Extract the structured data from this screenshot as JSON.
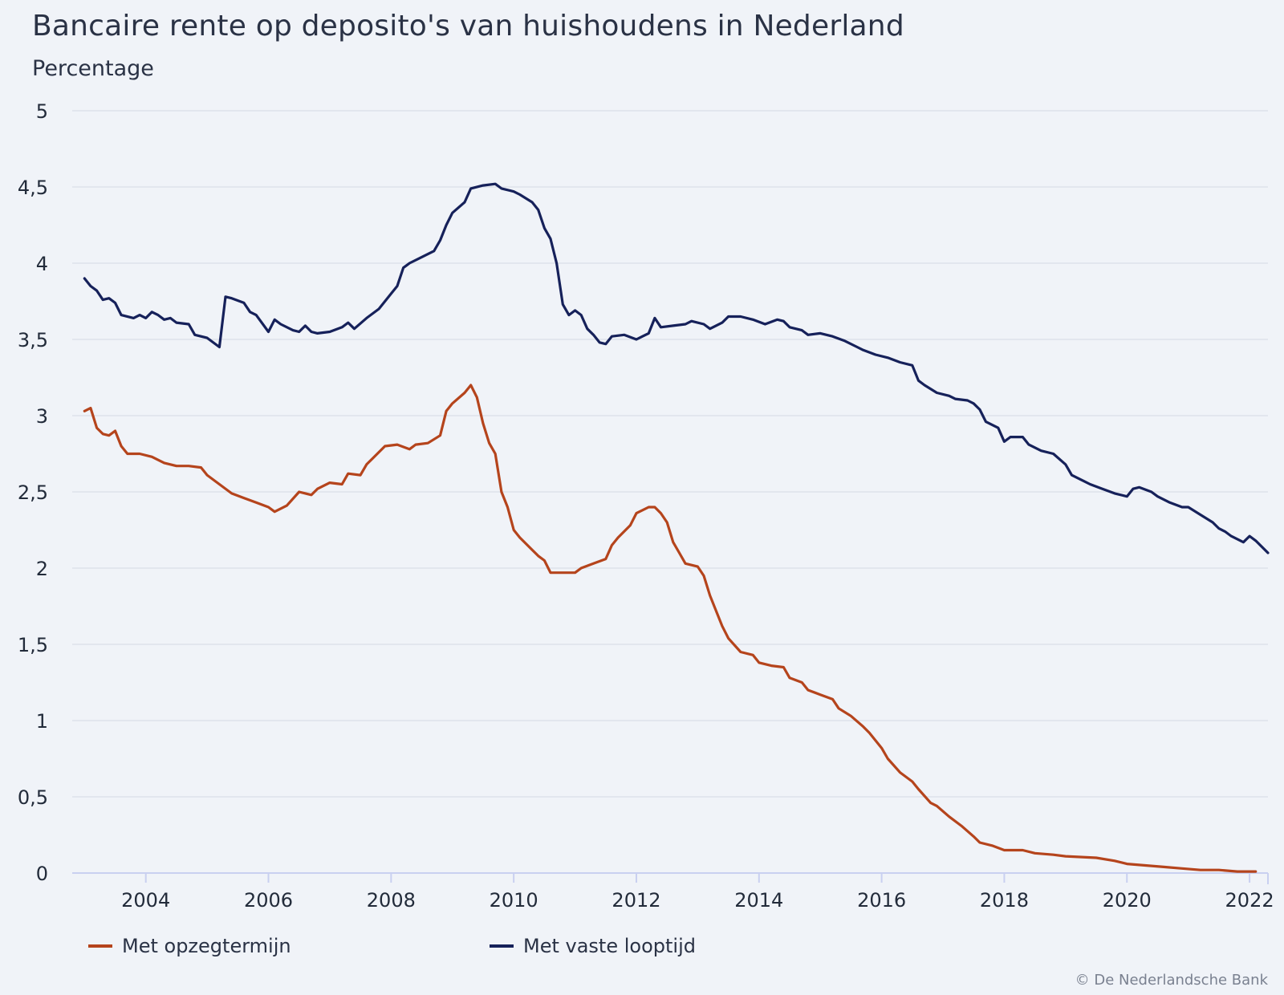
{
  "title": "Bancaire rente op deposito's van huishoudens in Nederland",
  "credit": "© De Nederlandsche Bank",
  "chart_data": {
    "type": "line",
    "title": "Bancaire rente op deposito's van huishoudens in Nederland",
    "ylabel": "Percentage",
    "xlabel": "",
    "ylim": [
      0,
      5
    ],
    "xlim": [
      2002.8,
      2022.3
    ],
    "y_ticks": [
      0,
      0.5,
      1,
      1.5,
      2,
      2.5,
      3,
      3.5,
      4,
      4.5,
      5
    ],
    "y_tick_labels": [
      "0",
      "0,5",
      "1",
      "1,5",
      "2",
      "2,5",
      "3",
      "3,5",
      "4",
      "4,5",
      "5"
    ],
    "x_ticks": [
      2004,
      2006,
      2008,
      2010,
      2012,
      2014,
      2016,
      2018,
      2020,
      2022
    ],
    "x_tick_labels": [
      "2004",
      "2006",
      "2008",
      "2010",
      "2012",
      "2014",
      "2016",
      "2018",
      "2020",
      "2022"
    ],
    "grid": "horizontal",
    "legend_position": "bottom-left",
    "series": [
      {
        "name": "Met opzegtermijn",
        "color": "#b5441c",
        "points": [
          [
            2003.0,
            3.03
          ],
          [
            2003.1,
            3.05
          ],
          [
            2003.2,
            2.92
          ],
          [
            2003.3,
            2.88
          ],
          [
            2003.4,
            2.87
          ],
          [
            2003.5,
            2.9
          ],
          [
            2003.6,
            2.8
          ],
          [
            2003.7,
            2.75
          ],
          [
            2003.9,
            2.75
          ],
          [
            2004.1,
            2.73
          ],
          [
            2004.3,
            2.69
          ],
          [
            2004.5,
            2.67
          ],
          [
            2004.7,
            2.67
          ],
          [
            2004.9,
            2.66
          ],
          [
            2005.0,
            2.61
          ],
          [
            2005.2,
            2.55
          ],
          [
            2005.4,
            2.49
          ],
          [
            2005.6,
            2.46
          ],
          [
            2005.8,
            2.43
          ],
          [
            2006.0,
            2.4
          ],
          [
            2006.1,
            2.37
          ],
          [
            2006.3,
            2.41
          ],
          [
            2006.5,
            2.5
          ],
          [
            2006.7,
            2.48
          ],
          [
            2006.8,
            2.52
          ],
          [
            2007.0,
            2.56
          ],
          [
            2007.2,
            2.55
          ],
          [
            2007.3,
            2.62
          ],
          [
            2007.5,
            2.61
          ],
          [
            2007.6,
            2.68
          ],
          [
            2007.7,
            2.72
          ],
          [
            2007.9,
            2.8
          ],
          [
            2008.1,
            2.81
          ],
          [
            2008.3,
            2.78
          ],
          [
            2008.4,
            2.81
          ],
          [
            2008.6,
            2.82
          ],
          [
            2008.8,
            2.87
          ],
          [
            2008.9,
            3.03
          ],
          [
            2009.0,
            3.08
          ],
          [
            2009.2,
            3.15
          ],
          [
            2009.3,
            3.2
          ],
          [
            2009.4,
            3.12
          ],
          [
            2009.5,
            2.95
          ],
          [
            2009.6,
            2.82
          ],
          [
            2009.7,
            2.75
          ],
          [
            2009.8,
            2.5
          ],
          [
            2009.9,
            2.4
          ],
          [
            2010.0,
            2.25
          ],
          [
            2010.1,
            2.2
          ],
          [
            2010.3,
            2.12
          ],
          [
            2010.4,
            2.08
          ],
          [
            2010.5,
            2.05
          ],
          [
            2010.6,
            1.97
          ],
          [
            2010.8,
            1.97
          ],
          [
            2011.0,
            1.97
          ],
          [
            2011.1,
            2.0
          ],
          [
            2011.3,
            2.03
          ],
          [
            2011.5,
            2.06
          ],
          [
            2011.6,
            2.15
          ],
          [
            2011.7,
            2.2
          ],
          [
            2011.9,
            2.28
          ],
          [
            2012.0,
            2.36
          ],
          [
            2012.2,
            2.4
          ],
          [
            2012.3,
            2.4
          ],
          [
            2012.4,
            2.36
          ],
          [
            2012.5,
            2.3
          ],
          [
            2012.6,
            2.17
          ],
          [
            2012.7,
            2.1
          ],
          [
            2012.8,
            2.03
          ],
          [
            2013.0,
            2.01
          ],
          [
            2013.1,
            1.95
          ],
          [
            2013.2,
            1.82
          ],
          [
            2013.3,
            1.72
          ],
          [
            2013.4,
            1.62
          ],
          [
            2013.5,
            1.54
          ],
          [
            2013.7,
            1.45
          ],
          [
            2013.9,
            1.43
          ],
          [
            2014.0,
            1.38
          ],
          [
            2014.2,
            1.36
          ],
          [
            2014.4,
            1.35
          ],
          [
            2014.5,
            1.28
          ],
          [
            2014.7,
            1.25
          ],
          [
            2014.8,
            1.2
          ],
          [
            2015.0,
            1.17
          ],
          [
            2015.2,
            1.14
          ],
          [
            2015.3,
            1.08
          ],
          [
            2015.5,
            1.03
          ],
          [
            2015.7,
            0.96
          ],
          [
            2015.8,
            0.92
          ],
          [
            2016.0,
            0.82
          ],
          [
            2016.1,
            0.75
          ],
          [
            2016.3,
            0.66
          ],
          [
            2016.5,
            0.6
          ],
          [
            2016.6,
            0.55
          ],
          [
            2016.8,
            0.46
          ],
          [
            2016.9,
            0.44
          ],
          [
            2017.1,
            0.37
          ],
          [
            2017.3,
            0.31
          ],
          [
            2017.5,
            0.24
          ],
          [
            2017.6,
            0.2
          ],
          [
            2017.8,
            0.18
          ],
          [
            2018.0,
            0.15
          ],
          [
            2018.3,
            0.15
          ],
          [
            2018.5,
            0.13
          ],
          [
            2018.8,
            0.12
          ],
          [
            2019.0,
            0.11
          ],
          [
            2019.5,
            0.1
          ],
          [
            2019.8,
            0.08
          ],
          [
            2020.0,
            0.06
          ],
          [
            2020.3,
            0.05
          ],
          [
            2020.6,
            0.04
          ],
          [
            2020.9,
            0.03
          ],
          [
            2021.2,
            0.02
          ],
          [
            2021.5,
            0.02
          ],
          [
            2021.8,
            0.01
          ],
          [
            2022.1,
            0.01
          ]
        ]
      },
      {
        "name": "Met vaste looptijd",
        "color": "#16215a",
        "points": [
          [
            2003.0,
            3.9
          ],
          [
            2003.1,
            3.85
          ],
          [
            2003.2,
            3.82
          ],
          [
            2003.3,
            3.76
          ],
          [
            2003.4,
            3.77
          ],
          [
            2003.5,
            3.74
          ],
          [
            2003.6,
            3.66
          ],
          [
            2003.8,
            3.64
          ],
          [
            2003.9,
            3.66
          ],
          [
            2004.0,
            3.64
          ],
          [
            2004.1,
            3.68
          ],
          [
            2004.2,
            3.66
          ],
          [
            2004.3,
            3.63
          ],
          [
            2004.4,
            3.64
          ],
          [
            2004.5,
            3.61
          ],
          [
            2004.7,
            3.6
          ],
          [
            2004.8,
            3.53
          ],
          [
            2005.0,
            3.51
          ],
          [
            2005.2,
            3.45
          ],
          [
            2005.3,
            3.78
          ],
          [
            2005.4,
            3.77
          ],
          [
            2005.6,
            3.74
          ],
          [
            2005.7,
            3.68
          ],
          [
            2005.8,
            3.66
          ],
          [
            2006.0,
            3.55
          ],
          [
            2006.1,
            3.63
          ],
          [
            2006.2,
            3.6
          ],
          [
            2006.4,
            3.56
          ],
          [
            2006.5,
            3.55
          ],
          [
            2006.6,
            3.59
          ],
          [
            2006.7,
            3.55
          ],
          [
            2006.8,
            3.54
          ],
          [
            2007.0,
            3.55
          ],
          [
            2007.2,
            3.58
          ],
          [
            2007.3,
            3.61
          ],
          [
            2007.4,
            3.57
          ],
          [
            2007.6,
            3.64
          ],
          [
            2007.8,
            3.7
          ],
          [
            2008.0,
            3.8
          ],
          [
            2008.1,
            3.85
          ],
          [
            2008.2,
            3.97
          ],
          [
            2008.3,
            4.0
          ],
          [
            2008.5,
            4.04
          ],
          [
            2008.7,
            4.08
          ],
          [
            2008.8,
            4.15
          ],
          [
            2008.9,
            4.25
          ],
          [
            2009.0,
            4.33
          ],
          [
            2009.2,
            4.4
          ],
          [
            2009.3,
            4.49
          ],
          [
            2009.5,
            4.51
          ],
          [
            2009.7,
            4.52
          ],
          [
            2009.8,
            4.49
          ],
          [
            2010.0,
            4.47
          ],
          [
            2010.1,
            4.45
          ],
          [
            2010.3,
            4.4
          ],
          [
            2010.4,
            4.35
          ],
          [
            2010.5,
            4.23
          ],
          [
            2010.6,
            4.16
          ],
          [
            2010.7,
            4.0
          ],
          [
            2010.8,
            3.73
          ],
          [
            2010.9,
            3.66
          ],
          [
            2011.0,
            3.69
          ],
          [
            2011.1,
            3.66
          ],
          [
            2011.2,
            3.57
          ],
          [
            2011.3,
            3.53
          ],
          [
            2011.4,
            3.48
          ],
          [
            2011.5,
            3.47
          ],
          [
            2011.6,
            3.52
          ],
          [
            2011.8,
            3.53
          ],
          [
            2012.0,
            3.5
          ],
          [
            2012.1,
            3.52
          ],
          [
            2012.2,
            3.54
          ],
          [
            2012.3,
            3.64
          ],
          [
            2012.4,
            3.58
          ],
          [
            2012.6,
            3.59
          ],
          [
            2012.8,
            3.6
          ],
          [
            2012.9,
            3.62
          ],
          [
            2013.1,
            3.6
          ],
          [
            2013.2,
            3.57
          ],
          [
            2013.4,
            3.61
          ],
          [
            2013.5,
            3.65
          ],
          [
            2013.7,
            3.65
          ],
          [
            2013.9,
            3.63
          ],
          [
            2014.1,
            3.6
          ],
          [
            2014.3,
            3.63
          ],
          [
            2014.4,
            3.62
          ],
          [
            2014.5,
            3.58
          ],
          [
            2014.7,
            3.56
          ],
          [
            2014.8,
            3.53
          ],
          [
            2015.0,
            3.54
          ],
          [
            2015.2,
            3.52
          ],
          [
            2015.4,
            3.49
          ],
          [
            2015.6,
            3.45
          ],
          [
            2015.7,
            3.43
          ],
          [
            2015.9,
            3.4
          ],
          [
            2016.1,
            3.38
          ],
          [
            2016.3,
            3.35
          ],
          [
            2016.5,
            3.33
          ],
          [
            2016.6,
            3.23
          ],
          [
            2016.7,
            3.2
          ],
          [
            2016.9,
            3.15
          ],
          [
            2017.1,
            3.13
          ],
          [
            2017.2,
            3.11
          ],
          [
            2017.4,
            3.1
          ],
          [
            2017.5,
            3.08
          ],
          [
            2017.6,
            3.04
          ],
          [
            2017.7,
            2.96
          ],
          [
            2017.9,
            2.92
          ],
          [
            2018.0,
            2.83
          ],
          [
            2018.1,
            2.86
          ],
          [
            2018.3,
            2.86
          ],
          [
            2018.4,
            2.81
          ],
          [
            2018.6,
            2.77
          ],
          [
            2018.8,
            2.75
          ],
          [
            2019.0,
            2.68
          ],
          [
            2019.1,
            2.61
          ],
          [
            2019.3,
            2.57
          ],
          [
            2019.4,
            2.55
          ],
          [
            2019.6,
            2.52
          ],
          [
            2019.8,
            2.49
          ],
          [
            2020.0,
            2.47
          ],
          [
            2020.1,
            2.52
          ],
          [
            2020.2,
            2.53
          ],
          [
            2020.4,
            2.5
          ],
          [
            2020.5,
            2.47
          ],
          [
            2020.7,
            2.43
          ],
          [
            2020.9,
            2.4
          ],
          [
            2021.0,
            2.4
          ],
          [
            2021.2,
            2.35
          ],
          [
            2021.4,
            2.3
          ],
          [
            2021.5,
            2.26
          ],
          [
            2021.6,
            2.24
          ],
          [
            2021.7,
            2.21
          ],
          [
            2021.9,
            2.17
          ],
          [
            2022.0,
            2.21
          ],
          [
            2022.1,
            2.18
          ],
          [
            2022.3,
            2.1
          ]
        ]
      }
    ]
  }
}
